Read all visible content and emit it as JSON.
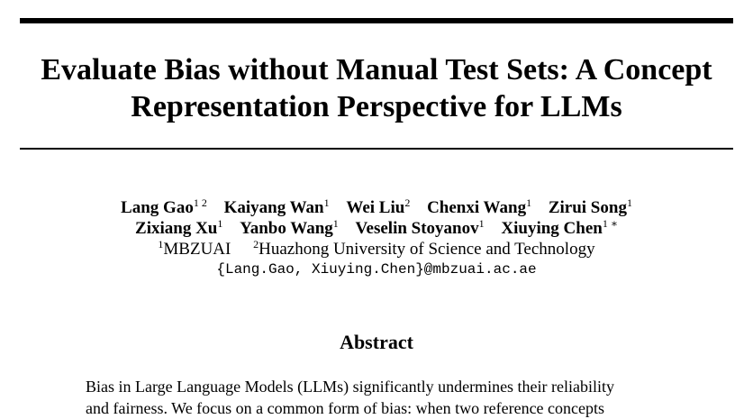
{
  "paper": {
    "title_lines": [
      "Evaluate Bias without Manual Test Sets: A Concept",
      "Representation Perspective for LLMs"
    ],
    "authors_line1": [
      {
        "name": "Lang Gao",
        "sup": "1 2"
      },
      {
        "name": "Kaiyang Wan",
        "sup": "1"
      },
      {
        "name": "Wei Liu",
        "sup": "2"
      },
      {
        "name": "Chenxi Wang",
        "sup": "1"
      },
      {
        "name": "Zirui Song",
        "sup": "1"
      }
    ],
    "authors_line2": [
      {
        "name": "Zixiang Xu",
        "sup": "1"
      },
      {
        "name": "Yanbo Wang",
        "sup": "1"
      },
      {
        "name": "Veselin Stoyanov",
        "sup": "1"
      },
      {
        "name": "Xiuying Chen",
        "sup": "1 ∗"
      }
    ],
    "affiliations": [
      {
        "sup": "1",
        "name": "MBZUAI"
      },
      {
        "sup": "2",
        "name": "Huazhong University of Science and Technology"
      }
    ],
    "email": "{Lang.Gao, Xiuying.Chen}@mbzuai.ac.ae",
    "abstract_heading": "Abstract",
    "abstract_lines": [
      "Bias in Large Language Models (LLMs) significantly undermines their reliability",
      "and fairness. We focus on a common form of bias: when two reference concepts"
    ]
  }
}
